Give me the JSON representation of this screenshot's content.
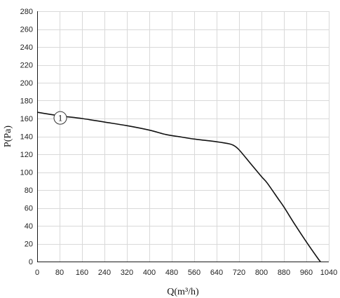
{
  "chart_data": {
    "type": "line",
    "xlabel": "Q(m³/h)",
    "ylabel": "P(Pa)",
    "xlim": [
      0,
      1040
    ],
    "ylim": [
      0,
      280
    ],
    "x_ticks": [
      0,
      80,
      160,
      240,
      320,
      400,
      480,
      560,
      640,
      720,
      800,
      880,
      960,
      1040
    ],
    "y_ticks": [
      0,
      20,
      40,
      60,
      80,
      100,
      120,
      140,
      160,
      180,
      200,
      220,
      240,
      260,
      280
    ],
    "grid": true,
    "series": [
      {
        "marker_label": "1",
        "x": [
          0,
          80,
          160,
          240,
          320,
          400,
          460,
          500,
          560,
          640,
          680,
          700,
          720,
          760,
          800,
          820,
          860,
          880,
          920,
          960,
          1000,
          1010
        ],
        "y": [
          167,
          163,
          160,
          156,
          152,
          147,
          142,
          140,
          137,
          134,
          132,
          130,
          125,
          110,
          95,
          88,
          70,
          61,
          41,
          22,
          4,
          0
        ]
      }
    ],
    "annotations": [
      {
        "text": "1",
        "x": 80,
        "y": 163
      }
    ]
  }
}
